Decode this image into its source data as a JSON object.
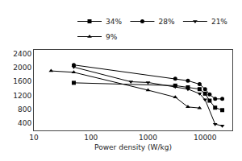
{
  "chart_data": {
    "type": "line",
    "xlabel": "Power density (W/kg)",
    "log": "x",
    "xlim": [
      10,
      30000
    ],
    "xticks": [
      10,
      100,
      1000,
      10000
    ],
    "ylim": [
      200,
      2500
    ],
    "yticks": [
      400,
      800,
      1200,
      1600,
      2000,
      2400
    ],
    "grid": false,
    "legend": "upper right",
    "color": "#000000",
    "series": [
      {
        "name": "34%",
        "marker": "square",
        "x": [
          50,
          3000,
          5000,
          8000,
          10000,
          12000,
          15000,
          20000
        ],
        "values": [
          1560,
          1480,
          1430,
          1380,
          1250,
          1050,
          850,
          780
        ]
      },
      {
        "name": "28%",
        "marker": "circle",
        "x": [
          50,
          3000,
          5000,
          8000,
          10000,
          12000,
          15000,
          20000
        ],
        "values": [
          2070,
          1680,
          1620,
          1520,
          1380,
          1230,
          1100,
          1100
        ]
      },
      {
        "name": "21%",
        "marker": "triangle-down",
        "x": [
          50,
          500,
          1000,
          3000,
          5000,
          8000,
          10000,
          15000,
          20000
        ],
        "values": [
          2010,
          1590,
          1570,
          1450,
          1380,
          1250,
          1080,
          380,
          330
        ]
      },
      {
        "name": "9%",
        "marker": "triangle-up",
        "x": [
          20,
          50,
          1000,
          3000,
          5000,
          8000
        ],
        "values": [
          1900,
          1860,
          1350,
          1150,
          870,
          840
        ]
      }
    ]
  }
}
